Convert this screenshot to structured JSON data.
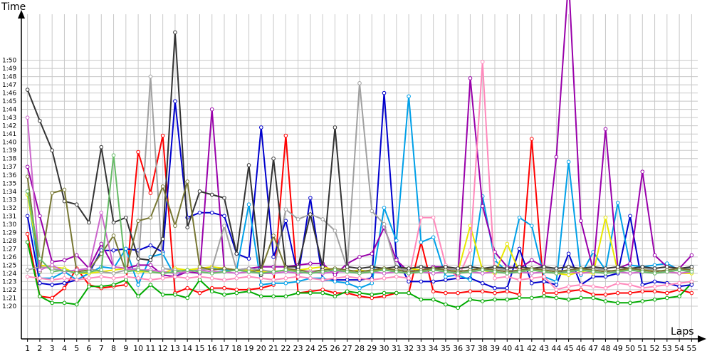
{
  "chart_data": {
    "type": "line",
    "title": "",
    "xlabel": "Laps",
    "ylabel": "Time",
    "x": [
      1,
      2,
      3,
      4,
      5,
      6,
      7,
      8,
      9,
      10,
      11,
      12,
      13,
      14,
      15,
      16,
      17,
      18,
      19,
      20,
      21,
      22,
      23,
      24,
      25,
      26,
      27,
      28,
      29,
      30,
      31,
      32,
      33,
      34,
      35,
      36,
      37,
      38,
      39,
      40,
      41,
      42,
      43,
      44,
      45,
      46,
      47,
      48,
      49,
      50,
      51,
      52,
      53,
      54,
      55
    ],
    "xlim": [
      0.5,
      55.5
    ],
    "ylim": [
      76,
      117
    ],
    "yticks": [
      80,
      81,
      82,
      83,
      84,
      85,
      86,
      87,
      88,
      89,
      90,
      91,
      92,
      93,
      94,
      95,
      96,
      97,
      98,
      99,
      100,
      101,
      102,
      103,
      104,
      105,
      106,
      107,
      108,
      109,
      110
    ],
    "ytick_labels": [
      "1:20",
      "1:21",
      "1:22",
      "1:23",
      "1:24",
      "1:25",
      "1:26",
      "1:27",
      "1:28",
      "1:29",
      "1:30",
      "1:31",
      "1:32",
      "1:33",
      "1:34",
      "1:35",
      "1:36",
      "1:37",
      "1:38",
      "1:39",
      "1:40",
      "1:41",
      "1:42",
      "1:43",
      "1:44",
      "1:45",
      "1:46",
      "1:47",
      "1:48",
      "1:49",
      "1:50"
    ],
    "xtick_labels": [
      "1",
      "2",
      "3",
      "4",
      "5",
      "6",
      "7",
      "8",
      "9",
      "10",
      "11",
      "12",
      "13",
      "14",
      "15",
      "16",
      "17",
      "18",
      "19",
      "20",
      "21",
      "22",
      "23",
      "24",
      "25",
      "26",
      "27",
      "28",
      "29",
      "30",
      "31",
      "32",
      "33",
      "34",
      "35",
      "36",
      "37",
      "38",
      "39",
      "40",
      "41",
      "42",
      "43",
      "44",
      "45",
      "46",
      "47",
      "48",
      "49",
      "50",
      "51",
      "52",
      "53",
      "54",
      "55"
    ],
    "grid": true,
    "legend": "none",
    "series": [
      {
        "color": "#ff0000",
        "values": [
          88.8,
          81.2,
          81.0,
          82.2,
          84.6,
          82.6,
          82.2,
          82.4,
          82.6,
          98.8,
          93.8,
          100.8,
          81.6,
          82.2,
          81.6,
          82.2,
          82.2,
          82.0,
          82.0,
          82.2,
          82.6,
          100.8,
          81.6,
          81.8,
          82.0,
          81.6,
          81.6,
          81.2,
          81.0,
          81.2,
          81.6,
          81.6,
          87.8,
          81.8,
          81.6,
          81.6,
          81.8,
          81.8,
          81.6,
          81.8,
          81.4,
          100.4,
          81.6,
          81.6,
          81.8,
          82.0,
          81.4,
          81.4,
          81.6,
          81.6,
          81.8,
          81.8,
          81.6,
          82.0,
          81.6
        ]
      },
      {
        "color": "#00aa00",
        "values": [
          87.8,
          81.2,
          80.4,
          80.4,
          80.2,
          82.4,
          82.4,
          82.6,
          83.2,
          81.2,
          82.6,
          81.4,
          81.4,
          81.0,
          83.2,
          81.8,
          81.4,
          81.6,
          81.8,
          81.2,
          81.2,
          81.2,
          81.6,
          81.6,
          81.6,
          81.2,
          81.8,
          81.6,
          81.4,
          81.6,
          81.6,
          81.6,
          80.8,
          80.8,
          80.2,
          79.8,
          80.8,
          80.6,
          80.8,
          80.8,
          81.0,
          81.0,
          81.2,
          81.0,
          80.8,
          81.0,
          81.0,
          80.6,
          80.4,
          80.4,
          80.6,
          80.8,
          81.0,
          81.2,
          82.8
        ]
      },
      {
        "color": "#0000cc",
        "values": [
          91.0,
          82.8,
          82.6,
          82.8,
          83.2,
          84.0,
          86.8,
          86.8,
          87.0,
          86.8,
          87.4,
          86.6,
          105.0,
          90.8,
          91.4,
          91.4,
          91.0,
          86.4,
          85.8,
          101.8,
          86.0,
          90.4,
          83.6,
          93.2,
          83.2,
          83.2,
          83.2,
          83.2,
          83.4,
          106.0,
          85.8,
          83.0,
          83.0,
          83.0,
          83.2,
          83.4,
          83.4,
          82.8,
          82.2,
          82.2,
          87.0,
          82.8,
          83.0,
          82.6,
          86.4,
          82.6,
          83.6,
          83.6,
          84.0,
          91.0,
          82.6,
          83.0,
          82.8,
          82.4,
          82.6
        ]
      },
      {
        "color": "#00a0e8",
        "values": [
          94.0,
          83.4,
          83.4,
          84.2,
          83.2,
          84.0,
          84.8,
          84.6,
          87.0,
          82.6,
          86.0,
          86.4,
          83.6,
          84.4,
          84.6,
          84.6,
          84.4,
          84.4,
          92.4,
          82.6,
          82.8,
          82.8,
          83.0,
          83.4,
          83.4,
          83.0,
          82.8,
          82.2,
          82.8,
          92.0,
          88.0,
          105.6,
          87.8,
          88.4,
          83.6,
          83.8,
          83.2,
          93.4,
          85.6,
          84.2,
          90.8,
          89.8,
          83.6,
          83.0,
          97.6,
          83.8,
          86.6,
          84.4,
          92.6,
          85.0,
          84.8,
          85.0,
          85.2,
          84.4,
          84.8
        ]
      },
      {
        "color": "#9900aa",
        "values": [
          97.0,
          91.0,
          85.4,
          85.6,
          86.2,
          84.6,
          87.6,
          84.8,
          84.6,
          85.0,
          85.0,
          83.8,
          83.6,
          84.2,
          84.0,
          104.0,
          84.6,
          84.4,
          84.6,
          84.8,
          84.8,
          84.8,
          85.0,
          85.2,
          85.2,
          83.8,
          85.2,
          86.0,
          86.4,
          89.6,
          85.6,
          84.2,
          84.4,
          84.8,
          84.8,
          83.6,
          107.8,
          92.2,
          86.6,
          84.8,
          84.6,
          85.6,
          84.8,
          98.2,
          120.0,
          90.4,
          84.4,
          101.6,
          84.6,
          85.2,
          96.4,
          86.2,
          84.8,
          84.6,
          86.2
        ]
      },
      {
        "color": "#e8e800",
        "values": [
          93.6,
          85.0,
          84.8,
          84.6,
          84.0,
          84.0,
          84.2,
          84.4,
          84.6,
          84.2,
          84.2,
          84.0,
          84.6,
          84.4,
          84.6,
          84.8,
          84.6,
          84.4,
          84.4,
          84.2,
          84.2,
          84.4,
          84.4,
          84.6,
          84.8,
          84.4,
          84.2,
          84.4,
          84.2,
          84.6,
          84.4,
          84.6,
          84.4,
          84.6,
          84.8,
          84.2,
          89.8,
          84.4,
          84.0,
          87.6,
          84.2,
          84.4,
          84.2,
          84.0,
          83.8,
          84.2,
          84.0,
          90.8,
          84.2,
          84.6,
          84.4,
          84.4,
          84.2,
          84.0,
          84.0
        ]
      },
      {
        "color": "#ff88bb",
        "values": [
          83.6,
          83.4,
          83.2,
          83.4,
          83.2,
          83.4,
          83.6,
          83.4,
          83.6,
          83.4,
          83.2,
          83.4,
          83.6,
          83.4,
          83.6,
          83.4,
          83.2,
          83.4,
          83.6,
          83.4,
          83.2,
          83.4,
          83.6,
          83.4,
          83.2,
          83.4,
          83.6,
          83.4,
          83.2,
          83.4,
          83.6,
          83.4,
          90.8,
          90.8,
          85.0,
          83.4,
          86.8,
          109.8,
          83.4,
          83.6,
          83.2,
          83.4,
          83.6,
          82.0,
          82.4,
          82.6,
          82.4,
          82.2,
          82.8,
          82.6,
          82.2,
          82.4,
          82.6,
          82.8,
          83.0
        ]
      },
      {
        "color": "#a0a0a0",
        "values": [
          84.4,
          84.8,
          84.6,
          84.2,
          84.4,
          84.6,
          84.2,
          84.0,
          84.4,
          84.6,
          108.0,
          84.6,
          84.4,
          84.2,
          84.4,
          84.6,
          89.8,
          84.4,
          84.6,
          84.4,
          84.2,
          91.8,
          90.6,
          91.2,
          90.6,
          89.2,
          84.6,
          107.2,
          91.6,
          90.0,
          84.6,
          84.4,
          84.2,
          84.4,
          84.6,
          84.4,
          84.2,
          84.4,
          84.6,
          84.4,
          84.2,
          84.4,
          84.6,
          84.4,
          84.2,
          84.4,
          84.6,
          84.4,
          84.2,
          84.4,
          84.6,
          84.4,
          84.2,
          84.4,
          84.6
        ]
      },
      {
        "color": "#333333",
        "values": [
          106.4,
          102.6,
          99.0,
          92.8,
          92.4,
          90.2,
          99.4,
          90.2,
          90.8,
          85.8,
          85.6,
          88.2,
          113.4,
          89.6,
          94.0,
          93.6,
          93.2,
          86.4,
          97.2,
          83.8,
          98.0,
          84.8,
          84.8,
          91.2,
          84.8,
          101.8,
          84.8,
          84.6,
          84.8,
          84.6,
          84.8,
          84.6,
          84.8,
          84.6,
          84.8,
          84.6,
          84.8,
          84.6,
          84.8,
          84.6,
          84.8,
          84.6,
          84.8,
          84.6,
          84.8,
          84.6,
          84.8,
          84.6,
          84.8,
          84.6,
          84.8,
          84.6,
          84.8,
          84.6,
          84.8
        ]
      },
      {
        "color": "#777733",
        "values": [
          95.8,
          84.2,
          93.8,
          94.2,
          84.2,
          84.4,
          86.4,
          88.6,
          84.2,
          90.4,
          90.8,
          94.6,
          89.8,
          95.2,
          84.8,
          84.4,
          84.6,
          84.4,
          84.2,
          84.4,
          88.6,
          84.6,
          84.4,
          84.2,
          84.4,
          84.6,
          84.4,
          84.2,
          84.4,
          84.6,
          84.4,
          84.2,
          84.4,
          84.6,
          84.4,
          84.2,
          84.4,
          84.6,
          84.4,
          84.2,
          84.4,
          84.6,
          84.4,
          84.2,
          84.4,
          84.6,
          84.4,
          84.2,
          84.4,
          84.6,
          84.4,
          84.2,
          84.4,
          84.6,
          84.4
        ]
      },
      {
        "color": "#cc66cc",
        "values": [
          103.0,
          84.4,
          85.0,
          84.2,
          84.4,
          84.6,
          91.4,
          84.8,
          84.6,
          84.4,
          84.4,
          84.2,
          84.0,
          84.2,
          84.4,
          84.2,
          84.2,
          84.0,
          84.2,
          84.0,
          84.0,
          84.2,
          84.0,
          84.2,
          84.0,
          84.2,
          84.2,
          84.0,
          84.2,
          84.0,
          84.2,
          84.0,
          84.2,
          84.0,
          84.2,
          84.0,
          84.2,
          84.0,
          84.2,
          84.0,
          84.2,
          84.0,
          84.2,
          84.0,
          84.2,
          84.0,
          84.2,
          84.0,
          84.2,
          84.0,
          84.2,
          84.0,
          84.2,
          84.0,
          84.2
        ]
      },
      {
        "color": "#66bb66",
        "values": [
          94.0,
          85.8,
          84.2,
          84.4,
          84.0,
          84.2,
          84.4,
          98.4,
          84.2,
          84.4,
          84.2,
          84.0,
          84.2,
          84.4,
          84.2,
          84.0,
          84.2,
          84.4,
          84.2,
          84.0,
          84.2,
          84.4,
          84.2,
          84.0,
          84.2,
          84.4,
          84.2,
          84.0,
          84.2,
          84.4,
          84.2,
          84.0,
          84.2,
          84.4,
          84.2,
          84.0,
          84.2,
          84.4,
          84.2,
          84.0,
          84.2,
          84.4,
          84.2,
          84.0,
          84.2,
          84.4,
          84.2,
          84.0,
          84.2,
          84.4,
          84.2,
          84.0,
          84.2,
          84.4,
          84.2
        ]
      }
    ]
  }
}
